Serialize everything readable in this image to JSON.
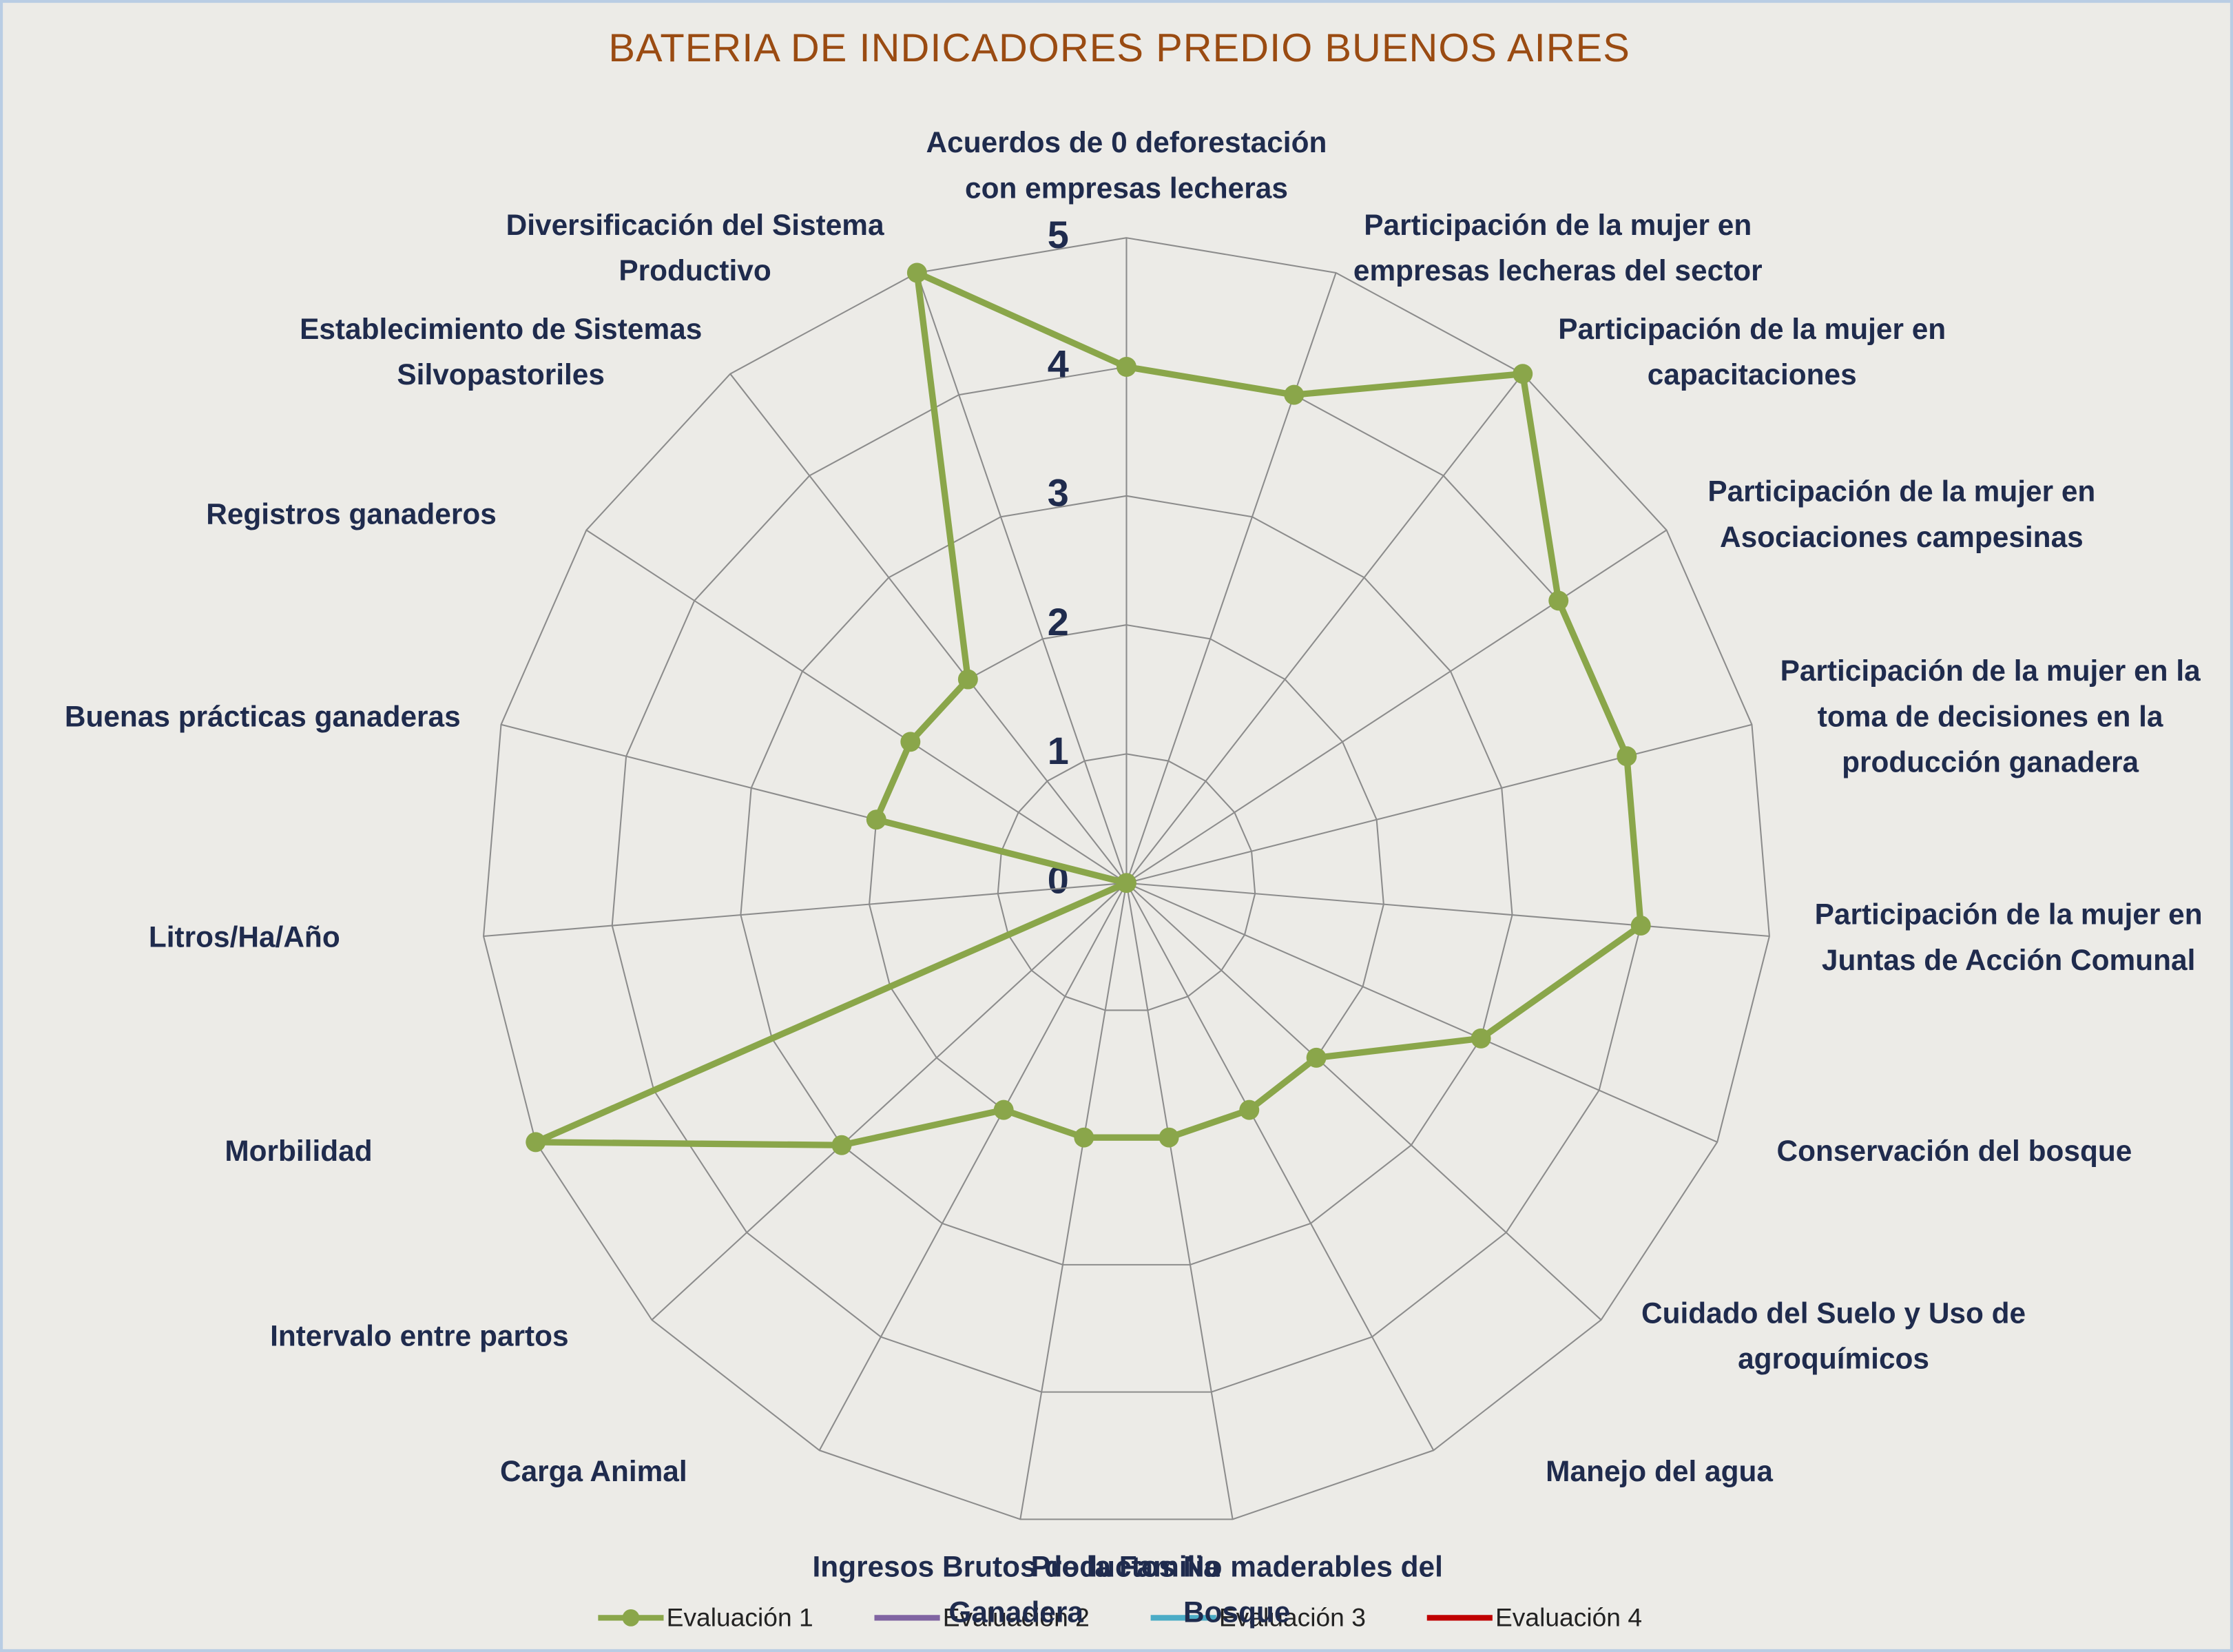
{
  "chart_data": {
    "type": "radar",
    "title": "BATERIA DE INDICADORES PREDIO BUENOS AIRES",
    "categories": [
      "Acuerdos de 0 deforestación con empresas lecheras",
      "Participación de la mujer en empresas lecheras del sector",
      "Participación de la mujer en capacitaciones",
      "Participación de la mujer en Asociaciones campesinas",
      "Participación de la mujer en la toma de decisiones en la producción ganadera",
      "Participación de la mujer en Juntas de Acción Comunal",
      "Conservación del bosque",
      "Cuidado del Suelo y Uso de agroquímicos",
      "Manejo del agua",
      "Productos No maderables del Bosque",
      "Ingresos Brutos de la Familia Ganadera",
      "Carga Animal",
      "Intervalo entre partos",
      "Morbilidad",
      "Litros/Ha/Año",
      "Buenas prácticas ganaderas",
      "Registros ganaderos",
      "Establecimiento de Sistemas Silvopastoriles",
      "Diversificación del Sistema Productivo"
    ],
    "series": [
      {
        "name": "Evaluación 1",
        "color": "#8aa64a",
        "values": [
          4,
          4,
          5,
          4,
          4,
          4,
          3,
          2,
          2,
          2,
          2,
          2,
          3,
          5,
          0,
          2,
          2,
          2,
          5
        ]
      },
      {
        "name": "Evaluación 2",
        "color": "#8064a2",
        "values": [
          null,
          null,
          null,
          null,
          null,
          null,
          null,
          null,
          null,
          null,
          null,
          null,
          null,
          null,
          null,
          null,
          null,
          null,
          null
        ]
      },
      {
        "name": "Evaluación 3",
        "color": "#4bacc6",
        "values": [
          null,
          null,
          null,
          null,
          null,
          null,
          null,
          null,
          null,
          null,
          null,
          null,
          null,
          null,
          null,
          null,
          null,
          null,
          null
        ]
      },
      {
        "name": "Evaluación 4",
        "color": "#c00000",
        "values": [
          null,
          null,
          null,
          null,
          null,
          null,
          null,
          null,
          null,
          null,
          null,
          null,
          null,
          null,
          null,
          null,
          null,
          null,
          null
        ]
      }
    ],
    "rlim": [
      0,
      5
    ],
    "rticks": [
      0,
      1,
      2,
      3,
      4,
      5
    ],
    "grid": true,
    "legend": "bottom"
  }
}
